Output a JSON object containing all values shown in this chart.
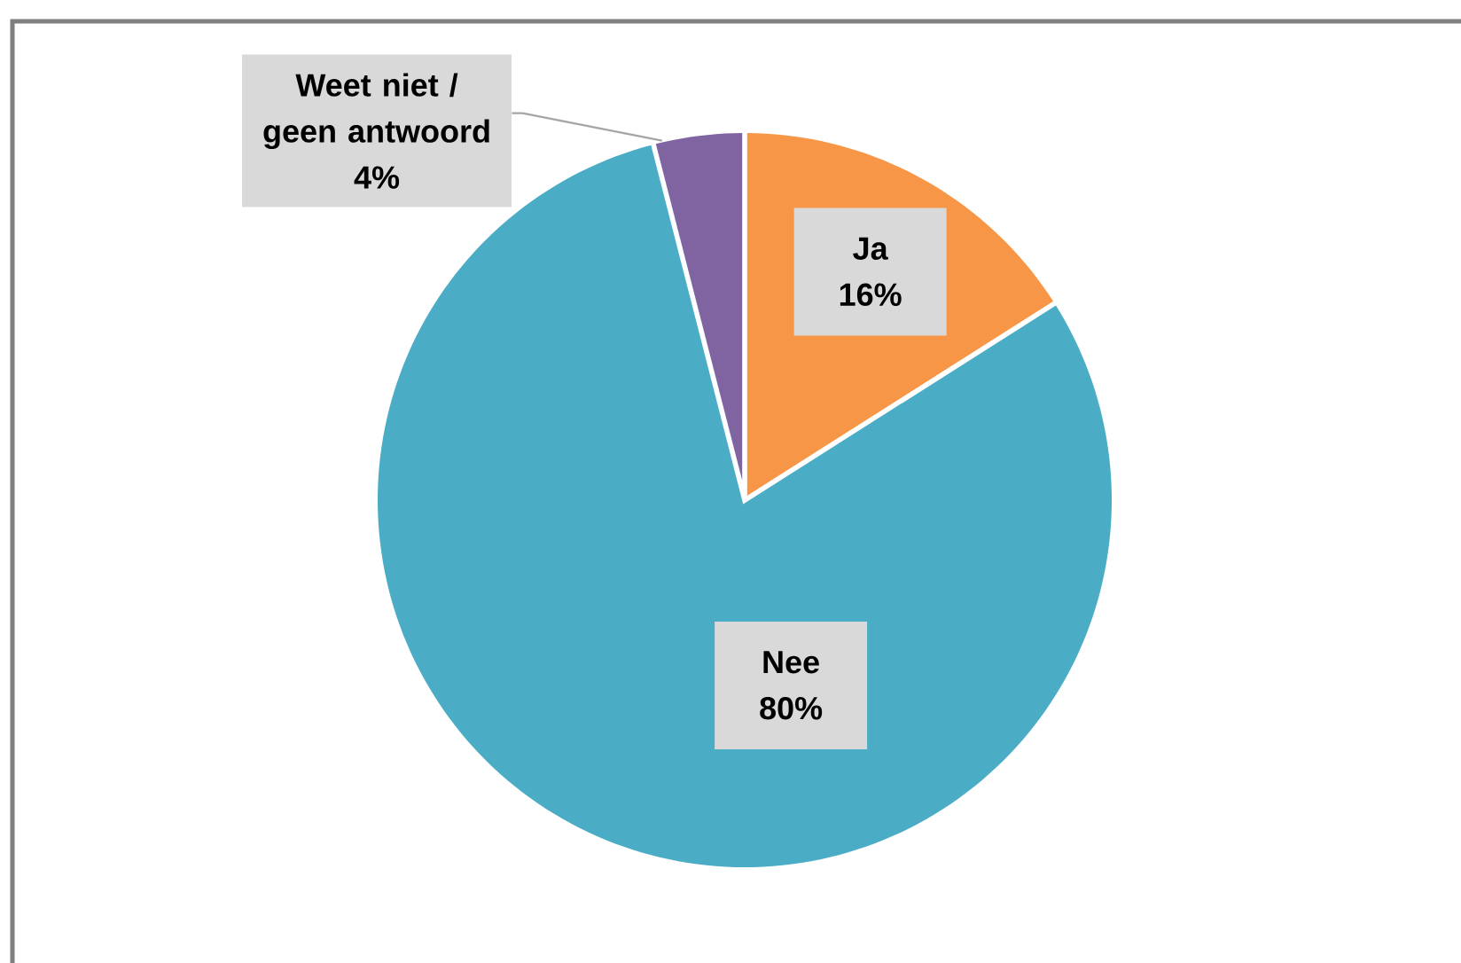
{
  "chart_data": {
    "type": "pie",
    "categories": [
      "Ja",
      "Nee",
      "Weet niet / geen antwoord"
    ],
    "values": [
      16,
      80,
      4
    ],
    "colors": [
      "#f79646",
      "#4bacc6",
      "#8064a2"
    ],
    "value_labels": [
      "16%",
      "80%",
      "4%"
    ]
  }
}
